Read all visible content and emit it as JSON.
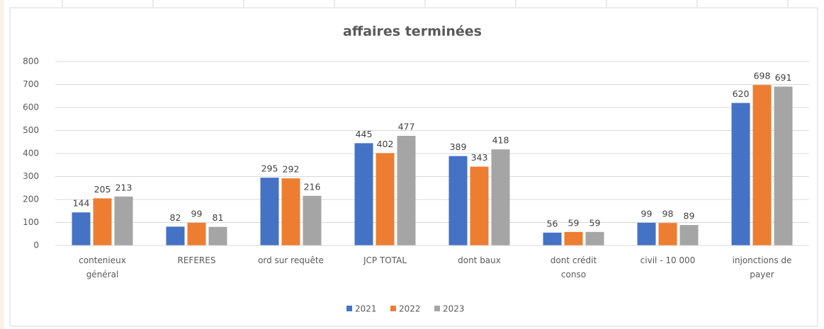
{
  "chart_data": {
    "type": "bar",
    "title": "affaires terminées",
    "categories": [
      "contenieux général",
      "REFERES",
      "ord sur requête",
      "JCP TOTAL",
      "dont baux",
      "dont crédit conso",
      "civil - 10 000",
      "injonctions de payer"
    ],
    "series": [
      {
        "name": "2021",
        "color": "#4472c4",
        "values": [
          144,
          82,
          295,
          445,
          389,
          56,
          99,
          620
        ]
      },
      {
        "name": "2022",
        "color": "#ed7d31",
        "values": [
          205,
          99,
          292,
          402,
          343,
          59,
          98,
          698
        ]
      },
      {
        "name": "2023",
        "color": "#a5a5a5",
        "values": [
          213,
          81,
          216,
          477,
          418,
          59,
          89,
          691
        ]
      }
    ],
    "ylim": [
      0,
      800
    ],
    "yticks": [
      0,
      100,
      200,
      300,
      400,
      500,
      600,
      700,
      800
    ],
    "grid": true,
    "legend": "bottom"
  }
}
